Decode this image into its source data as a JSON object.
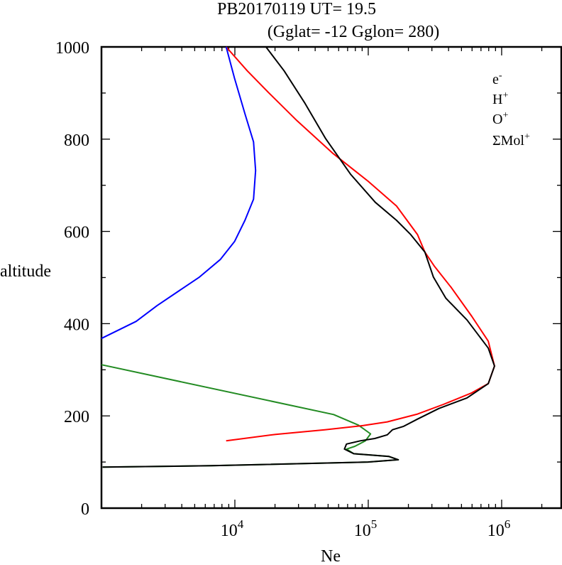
{
  "chart_data": {
    "type": "line",
    "title_line1": "PB20170119   UT=  19.5",
    "title_line2": "(Gglat= -12   Gglon=  280)",
    "xlabel": "Ne",
    "ylabel": "altitude",
    "xscale": "log",
    "xlim": [
      1000,
      2800000
    ],
    "ylim": [
      0,
      1000
    ],
    "yticks": [
      "0",
      "200",
      "400",
      "600",
      "800",
      "1000"
    ],
    "ytick_values": [
      0,
      200,
      400,
      600,
      800,
      1000
    ],
    "xticks": [
      {
        "base": "10",
        "exp": "4",
        "value": 10000
      },
      {
        "base": "10",
        "exp": "5",
        "value": 100000
      },
      {
        "base": "10",
        "exp": "6",
        "value": 1000000
      }
    ],
    "legend_position": "top-right",
    "series": [
      {
        "name": "e",
        "sup": "-",
        "color": "#000000",
        "points": [
          [
            17100,
            1000
          ],
          [
            23400,
            948
          ],
          [
            33500,
            878
          ],
          [
            48000,
            801
          ],
          [
            73700,
            724
          ],
          [
            113000,
            663
          ],
          [
            163000,
            624
          ],
          [
            208000,
            593
          ],
          [
            266000,
            555
          ],
          [
            308000,
            501
          ],
          [
            382000,
            455
          ],
          [
            550000,
            408
          ],
          [
            794000,
            347
          ],
          [
            884000,
            308
          ],
          [
            794000,
            270
          ],
          [
            550000,
            239
          ],
          [
            338000,
            216
          ],
          [
            234000,
            193
          ],
          [
            183000,
            177
          ],
          [
            152000,
            170
          ],
          [
            139000,
            159
          ],
          [
            112000,
            151
          ],
          [
            87600,
            146
          ],
          [
            68700,
            139
          ],
          [
            66300,
            128
          ],
          [
            77800,
            118
          ],
          [
            143000,
            112
          ],
          [
            168000,
            105
          ],
          [
            99500,
            100
          ],
          [
            6690,
            92
          ],
          [
            1020,
            89
          ]
        ]
      },
      {
        "name": "H",
        "sup": "+",
        "color": "#0000ff",
        "points": [
          [
            8600,
            1000
          ],
          [
            9940,
            932
          ],
          [
            11900,
            855
          ],
          [
            13800,
            794
          ],
          [
            14300,
            732
          ],
          [
            13800,
            670
          ],
          [
            11900,
            624
          ],
          [
            9940,
            578
          ],
          [
            7770,
            539
          ],
          [
            5420,
            501
          ],
          [
            3760,
            470
          ],
          [
            2610,
            439
          ],
          [
            1820,
            405
          ],
          [
            1000,
            368
          ]
        ]
      },
      {
        "name": "O",
        "sup": "+",
        "color": "#ff0000",
        "points": [
          [
            8600,
            1000
          ],
          [
            12400,
            948
          ],
          [
            17900,
            901
          ],
          [
            29200,
            840
          ],
          [
            53900,
            770
          ],
          [
            99500,
            709
          ],
          [
            163000,
            655
          ],
          [
            234000,
            593
          ],
          [
            266000,
            555
          ],
          [
            314000,
            524
          ],
          [
            420000,
            478
          ],
          [
            597000,
            416
          ],
          [
            794000,
            362
          ],
          [
            884000,
            308
          ],
          [
            794000,
            270
          ],
          [
            597000,
            250
          ],
          [
            366000,
            225
          ],
          [
            234000,
            204
          ],
          [
            139000,
            187
          ],
          [
            91700,
            179
          ],
          [
            47200,
            170
          ],
          [
            20200,
            160
          ],
          [
            8600,
            146
          ]
        ]
      },
      {
        "name": "ΣMol",
        "sup": "+",
        "color": "#228b22",
        "points": [
          [
            1000,
            311
          ],
          [
            55000,
            203
          ],
          [
            84400,
            180
          ],
          [
            104000,
            161
          ],
          [
            95300,
            146
          ],
          [
            79400,
            134
          ],
          [
            68700,
            128
          ],
          [
            77800,
            118
          ],
          [
            143000,
            112
          ],
          [
            168000,
            105
          ],
          [
            99500,
            100
          ],
          [
            6690,
            92
          ],
          [
            1020,
            89
          ]
        ]
      }
    ]
  }
}
